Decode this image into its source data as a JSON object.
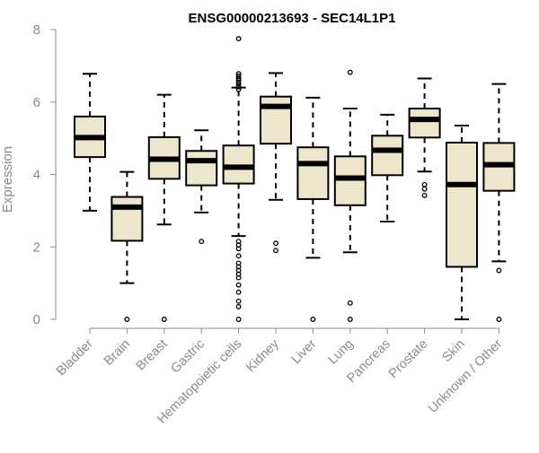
{
  "chart_data": {
    "type": "boxplot",
    "title": "ENSG00000213693 - SEC14L1P1",
    "ylabel": "Expression",
    "xlabel": "",
    "ylim": [
      0,
      8
    ],
    "yticks": [
      0,
      2,
      4,
      6,
      8
    ],
    "grid": false,
    "legend": "none",
    "box_fill": "#ede6cd",
    "categories": [
      "Bladder",
      "Brain",
      "Breast",
      "Gastric",
      "Hematopoietic cells",
      "Kidney",
      "Liver",
      "Lung",
      "Pancreas",
      "Prostate",
      "Skin",
      "Unknown / Other"
    ],
    "boxes": [
      {
        "name": "Bladder",
        "whisker_low": 3.0,
        "q1": 4.48,
        "median": 5.02,
        "q3": 5.6,
        "whisker_high": 6.78,
        "outliers": []
      },
      {
        "name": "Brain",
        "whisker_low": 1.0,
        "q1": 2.17,
        "median": 3.1,
        "q3": 3.38,
        "whisker_high": 4.07,
        "outliers": [
          0.0
        ]
      },
      {
        "name": "Breast",
        "whisker_low": 2.62,
        "q1": 3.88,
        "median": 4.42,
        "q3": 5.03,
        "whisker_high": 6.2,
        "outliers": [
          0.0
        ]
      },
      {
        "name": "Gastric",
        "whisker_low": 2.95,
        "q1": 3.7,
        "median": 4.38,
        "q3": 4.65,
        "whisker_high": 5.22,
        "outliers": [
          2.15
        ]
      },
      {
        "name": "Hematopoietic cells",
        "whisker_low": 2.3,
        "q1": 3.75,
        "median": 4.2,
        "q3": 4.8,
        "whisker_high": 6.4,
        "outliers": [
          7.75,
          6.78,
          6.72,
          6.65,
          6.6,
          6.55,
          6.5,
          6.42,
          6.35,
          2.15,
          2.05,
          1.95,
          1.75,
          1.55,
          1.45,
          1.35,
          1.25,
          1.15,
          0.95,
          0.75,
          0.5,
          0.35,
          0.0
        ]
      },
      {
        "name": "Kidney",
        "whisker_low": 3.3,
        "q1": 4.85,
        "median": 5.88,
        "q3": 6.15,
        "whisker_high": 6.8,
        "outliers": [
          2.1,
          1.9
        ]
      },
      {
        "name": "Liver",
        "whisker_low": 1.7,
        "q1": 3.32,
        "median": 4.3,
        "q3": 4.75,
        "whisker_high": 6.12,
        "outliers": [
          0.0
        ]
      },
      {
        "name": "Lung",
        "whisker_low": 1.85,
        "q1": 3.15,
        "median": 3.9,
        "q3": 4.5,
        "whisker_high": 5.82,
        "outliers": [
          6.82,
          0.45,
          0.0
        ]
      },
      {
        "name": "Pancreas",
        "whisker_low": 2.7,
        "q1": 3.98,
        "median": 4.67,
        "q3": 5.07,
        "whisker_high": 5.65,
        "outliers": []
      },
      {
        "name": "Prostate",
        "whisker_low": 4.08,
        "q1": 5.02,
        "median": 5.52,
        "q3": 5.82,
        "whisker_high": 6.65,
        "outliers": [
          3.72,
          3.6,
          3.42
        ]
      },
      {
        "name": "Skin",
        "whisker_low": 0.0,
        "q1": 1.45,
        "median": 3.72,
        "q3": 4.88,
        "whisker_high": 5.35,
        "outliers": []
      },
      {
        "name": "Unknown / Other",
        "whisker_low": 1.6,
        "q1": 3.55,
        "median": 4.27,
        "q3": 4.87,
        "whisker_high": 6.5,
        "outliers": [
          1.35,
          0.0
        ]
      }
    ]
  }
}
